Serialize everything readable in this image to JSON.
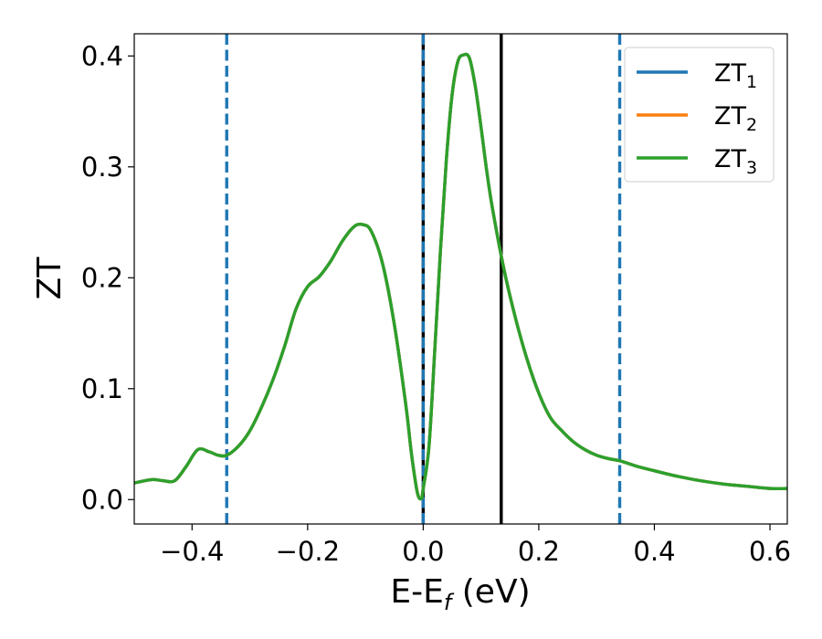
{
  "chart_data": {
    "type": "line",
    "title": "",
    "xlabel": "E-E",
    "xlabel_sub": "f",
    "xlabel_unit": " (eV)",
    "ylabel": "ZT",
    "xlim": [
      -0.5,
      0.63
    ],
    "ylim": [
      -0.022,
      0.42
    ],
    "xticks": [
      -0.4,
      -0.2,
      0.0,
      0.2,
      0.4,
      0.6
    ],
    "xtick_labels": [
      "−0.4",
      "−0.2",
      "0.0",
      "0.2",
      "0.4",
      "0.6"
    ],
    "yticks": [
      0.0,
      0.1,
      0.2,
      0.3,
      0.4
    ],
    "ytick_labels": [
      "0.0",
      "0.1",
      "0.2",
      "0.3",
      "0.4"
    ],
    "grid": false,
    "legend_position": "top-right",
    "series": [
      {
        "name": "ZT",
        "name_sub": "1",
        "color": "#1f77b4"
      },
      {
        "name": "ZT",
        "name_sub": "2",
        "color": "#ff7f0e"
      },
      {
        "name": "ZT",
        "name_sub": "3",
        "color": "#2ca02c"
      }
    ],
    "x": [
      -0.5,
      -0.47,
      -0.45,
      -0.43,
      -0.41,
      -0.39,
      -0.37,
      -0.355,
      -0.34,
      -0.32,
      -0.3,
      -0.28,
      -0.26,
      -0.24,
      -0.22,
      -0.2,
      -0.18,
      -0.16,
      -0.14,
      -0.12,
      -0.105,
      -0.09,
      -0.07,
      -0.05,
      -0.03,
      -0.02,
      -0.01,
      -0.003,
      0.0,
      0.01,
      0.02,
      0.03,
      0.04,
      0.05,
      0.06,
      0.07,
      0.08,
      0.09,
      0.1,
      0.11,
      0.12,
      0.14,
      0.16,
      0.18,
      0.2,
      0.22,
      0.24,
      0.26,
      0.28,
      0.3,
      0.32,
      0.34,
      0.37,
      0.4,
      0.44,
      0.48,
      0.52,
      0.56,
      0.6,
      0.63
    ],
    "y": [
      0.015,
      0.018,
      0.017,
      0.017,
      0.03,
      0.045,
      0.043,
      0.04,
      0.04,
      0.048,
      0.062,
      0.083,
      0.108,
      0.138,
      0.172,
      0.192,
      0.201,
      0.215,
      0.233,
      0.246,
      0.248,
      0.242,
      0.212,
      0.158,
      0.085,
      0.04,
      0.006,
      0.001,
      0.01,
      0.048,
      0.135,
      0.226,
      0.306,
      0.365,
      0.395,
      0.401,
      0.398,
      0.373,
      0.336,
      0.296,
      0.262,
      0.207,
      0.163,
      0.126,
      0.096,
      0.074,
      0.062,
      0.052,
      0.045,
      0.04,
      0.037,
      0.035,
      0.03,
      0.026,
      0.021,
      0.017,
      0.014,
      0.012,
      0.01,
      0.01
    ],
    "vlines_dashed": [
      -0.34,
      0.34
    ],
    "vlines_solid": [
      0.0,
      0.135
    ]
  }
}
